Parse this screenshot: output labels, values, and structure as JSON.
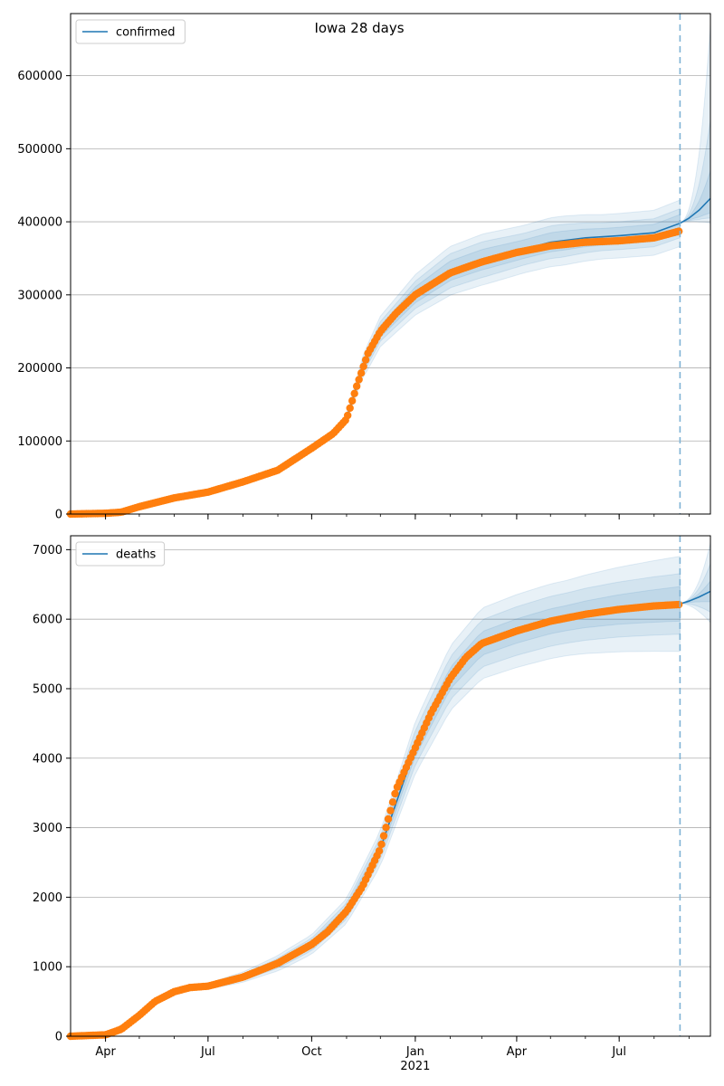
{
  "figure": {
    "title": "Iowa 28 days"
  },
  "colors": {
    "band": "#1f77b4",
    "model_line": "#1f77b4",
    "observed": "#ff7f0e",
    "grid": "#b0b0b0",
    "forecast_divider": "#7fb3d5"
  },
  "x_axis": {
    "start": "2020-03-01",
    "end": "2021-09-20",
    "forecast_start": "2021-08-24",
    "ticks": [
      {
        "date": "2020-04-01",
        "label": "Apr"
      },
      {
        "date": "2020-07-01",
        "label": "Jul"
      },
      {
        "date": "2020-10-01",
        "label": "Oct"
      },
      {
        "date": "2021-01-01",
        "label": "Jan"
      },
      {
        "date": "2021-04-01",
        "label": "Apr"
      },
      {
        "date": "2021-07-01",
        "label": "Jul"
      }
    ],
    "year_label": "2021"
  },
  "chart_data": [
    {
      "type": "line",
      "legend": "confirmed",
      "legend_position": "top-left",
      "ylim": [
        0,
        685000
      ],
      "yticks": [
        0,
        100000,
        200000,
        300000,
        400000,
        500000,
        600000
      ],
      "grid": true,
      "observed": {
        "x": [
          "2020-03-01",
          "2020-04-01",
          "2020-04-15",
          "2020-05-01",
          "2020-06-01",
          "2020-07-01",
          "2020-08-01",
          "2020-09-01",
          "2020-10-01",
          "2020-10-20",
          "2020-11-01",
          "2020-11-10",
          "2020-11-20",
          "2020-12-01",
          "2020-12-15",
          "2021-01-01",
          "2021-02-01",
          "2021-03-01",
          "2021-04-01",
          "2021-05-01",
          "2021-06-01",
          "2021-07-01",
          "2021-08-01",
          "2021-08-23"
        ],
        "y": [
          0,
          1000,
          2500,
          10000,
          22000,
          30000,
          44000,
          60000,
          90000,
          110000,
          130000,
          175000,
          220000,
          250000,
          275000,
          300000,
          330000,
          345000,
          358000,
          367000,
          372000,
          374000,
          378000,
          387000
        ]
      },
      "model": {
        "x": [
          "2020-03-01",
          "2020-04-01",
          "2020-05-01",
          "2020-06-01",
          "2020-07-01",
          "2020-08-01",
          "2020-09-01",
          "2020-10-01",
          "2020-11-01",
          "2020-11-15",
          "2020-12-01",
          "2021-01-01",
          "2021-02-01",
          "2021-03-01",
          "2021-04-01",
          "2021-05-01",
          "2021-06-01",
          "2021-07-01",
          "2021-08-01",
          "2021-08-24",
          "2021-09-01",
          "2021-09-10",
          "2021-09-20"
        ],
        "y": [
          0,
          1000,
          10000,
          22000,
          30000,
          44000,
          60000,
          90000,
          130000,
          200000,
          250000,
          300000,
          333000,
          348000,
          360000,
          372000,
          378000,
          381000,
          385000,
          398000,
          405000,
          416000,
          432000
        ]
      },
      "bands": [
        {
          "start": "2020-10-15",
          "offset_pct": [
            0,
            8,
            9,
            10,
            10,
            9,
            9,
            8,
            8,
            8
          ]
        },
        {
          "start": "2020-10-15",
          "offset_pct": [
            0,
            5,
            6,
            7,
            7,
            6,
            6,
            5,
            5,
            5
          ]
        },
        {
          "start": "2020-10-15",
          "offset_pct": [
            0,
            3,
            3.5,
            4,
            4,
            3.5,
            3.5,
            3,
            3,
            3
          ]
        }
      ],
      "forecast_bands": [
        {
          "y_end_upper": 670000,
          "y_end_lower": 398000
        },
        {
          "y_end_upper": 540000,
          "y_end_lower": 405000
        },
        {
          "y_end_upper": 470000,
          "y_end_lower": 412000
        }
      ]
    },
    {
      "type": "line",
      "legend": "deaths",
      "legend_position": "top-left",
      "ylim": [
        0,
        7200
      ],
      "yticks": [
        0,
        1000,
        2000,
        3000,
        4000,
        5000,
        6000,
        7000
      ],
      "grid": true,
      "observed": {
        "x": [
          "2020-03-01",
          "2020-04-01",
          "2020-04-15",
          "2020-05-01",
          "2020-05-15",
          "2020-06-01",
          "2020-06-15",
          "2020-07-01",
          "2020-08-01",
          "2020-09-01",
          "2020-10-01",
          "2020-10-15",
          "2020-11-01",
          "2020-11-15",
          "2020-12-01",
          "2020-12-15",
          "2021-01-01",
          "2021-01-15",
          "2021-02-01",
          "2021-02-15",
          "2021-03-01",
          "2021-04-01",
          "2021-05-01",
          "2021-06-01",
          "2021-07-01",
          "2021-08-01",
          "2021-08-23"
        ],
        "y": [
          0,
          20,
          100,
          300,
          500,
          640,
          700,
          720,
          850,
          1050,
          1320,
          1500,
          1800,
          2150,
          2700,
          3550,
          4150,
          4650,
          5150,
          5450,
          5650,
          5830,
          5970,
          6070,
          6140,
          6190,
          6210
        ]
      },
      "model": {
        "x": [
          "2020-03-01",
          "2020-04-01",
          "2020-05-01",
          "2020-06-01",
          "2020-07-01",
          "2020-08-01",
          "2020-09-01",
          "2020-10-01",
          "2020-11-01",
          "2020-12-01",
          "2021-01-01",
          "2021-02-01",
          "2021-03-01",
          "2021-04-01",
          "2021-05-01",
          "2021-06-01",
          "2021-07-01",
          "2021-08-01",
          "2021-08-24",
          "2021-09-01",
          "2021-09-10",
          "2021-09-20"
        ],
        "y": [
          0,
          20,
          300,
          640,
          720,
          850,
          1050,
          1320,
          1800,
          2700,
          4150,
          5150,
          5650,
          5830,
          5970,
          6070,
          6140,
          6190,
          6220,
          6260,
          6320,
          6400
        ]
      },
      "bands": [
        {
          "start": "2020-06-01",
          "offset_pct": [
            2,
            8,
            11,
            10,
            9,
            9,
            9,
            9,
            10,
            11
          ]
        },
        {
          "start": "2020-06-01",
          "offset_pct": [
            1,
            5,
            7,
            6.5,
            6,
            6,
            6,
            6,
            6.5,
            7
          ]
        },
        {
          "start": "2020-06-01",
          "offset_pct": [
            0.5,
            2.5,
            3.5,
            3.5,
            3,
            3,
            3,
            3,
            3.5,
            4
          ]
        }
      ],
      "forecast_bands": [
        {
          "y_end_upper": 7100,
          "y_end_lower": 5950
        },
        {
          "y_end_upper": 6800,
          "y_end_lower": 6100
        },
        {
          "y_end_upper": 6550,
          "y_end_lower": 6250
        }
      ]
    }
  ]
}
